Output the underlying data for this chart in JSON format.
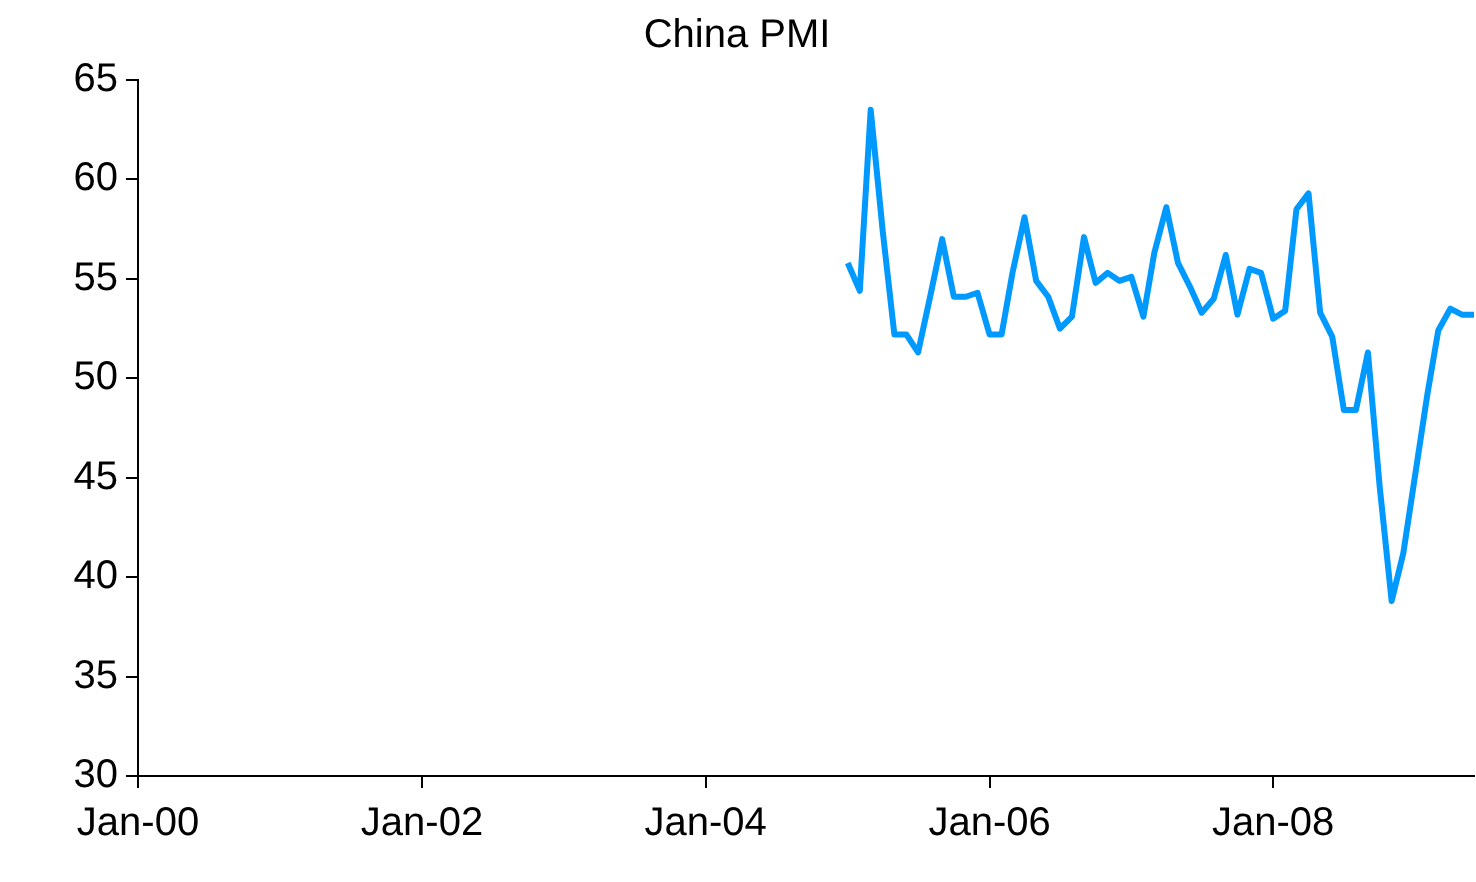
{
  "chart_data": {
    "type": "line",
    "title": "China PMI",
    "x": [
      "2005-01",
      "2005-02",
      "2005-03",
      "2005-04",
      "2005-05",
      "2005-06",
      "2005-07",
      "2005-08",
      "2005-09",
      "2005-10",
      "2005-11",
      "2005-12",
      "2006-01",
      "2006-02",
      "2006-03",
      "2006-04",
      "2006-05",
      "2006-06",
      "2006-07",
      "2006-08",
      "2006-09",
      "2006-10",
      "2006-11",
      "2006-12",
      "2007-01",
      "2007-02",
      "2007-03",
      "2007-04",
      "2007-05",
      "2007-06",
      "2007-07",
      "2007-08",
      "2007-09",
      "2007-10",
      "2007-11",
      "2007-12",
      "2008-01",
      "2008-02",
      "2008-03",
      "2008-04",
      "2008-05",
      "2008-06",
      "2008-07",
      "2008-08",
      "2008-09",
      "2008-10",
      "2008-11",
      "2008-12",
      "2009-01",
      "2009-02",
      "2009-03",
      "2009-04",
      "2009-05",
      "2009-06"
    ],
    "series": [
      {
        "color": "#0099ff",
        "values": [
          55.8,
          54.4,
          63.5,
          57.4,
          52.2,
          52.2,
          51.3,
          54.1,
          57.0,
          54.1,
          54.1,
          54.3,
          52.2,
          52.2,
          55.3,
          58.1,
          54.9,
          54.1,
          52.5,
          53.1,
          57.1,
          54.8,
          55.3,
          54.9,
          55.1,
          53.1,
          56.3,
          58.6,
          55.8,
          54.6,
          53.3,
          54.0,
          56.2,
          53.2,
          55.5,
          55.3,
          53.0,
          53.4,
          58.5,
          59.3,
          53.3,
          52.1,
          48.4,
          48.4,
          51.3,
          44.6,
          38.8,
          41.2,
          45.2,
          49.2,
          52.4,
          53.5,
          53.2,
          53.2
        ]
      }
    ],
    "xlim": [
      "2000-01",
      "2009-06"
    ],
    "xticks": [
      {
        "value": "2000-01",
        "label": "Jan-00"
      },
      {
        "value": "2002-01",
        "label": "Jan-02"
      },
      {
        "value": "2004-01",
        "label": "Jan-04"
      },
      {
        "value": "2006-01",
        "label": "Jan-06"
      },
      {
        "value": "2008-01",
        "label": "Jan-08"
      }
    ],
    "ylim": [
      30,
      65
    ],
    "yticks": [
      30,
      35,
      40,
      45,
      50,
      55,
      60,
      65
    ],
    "grid": false,
    "legend": false,
    "marker": "none",
    "line_style": "solid"
  }
}
